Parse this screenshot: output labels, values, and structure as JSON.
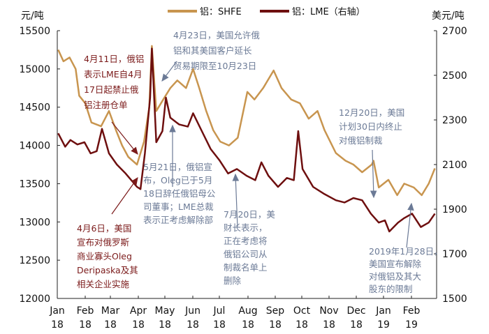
{
  "chart_data": {
    "type": "line",
    "left_unit": "元/吨",
    "right_unit": "美元/吨",
    "yleft": {
      "lim": [
        12000,
        15500
      ],
      "ticks": [
        "15500",
        "15000",
        "14500",
        "14000",
        "13500",
        "13000",
        "12500",
        "12000"
      ]
    },
    "yright": {
      "lim": [
        1500,
        2700
      ],
      "ticks": [
        "2700",
        "2500",
        "2300",
        "2100",
        "1900",
        "1700",
        "1500"
      ]
    },
    "xticks": [
      [
        "Jan",
        "18"
      ],
      [
        "Feb",
        "18"
      ],
      [
        "Mar",
        "18"
      ],
      [
        "Apr",
        "18"
      ],
      [
        "May",
        "18"
      ],
      [
        "Jun",
        "18"
      ],
      [
        "Jul",
        "18"
      ],
      [
        "Aug",
        "18"
      ],
      [
        "Sep",
        "18"
      ],
      [
        "Oct",
        "18"
      ],
      [
        "Nov",
        "18"
      ],
      [
        "Dec",
        "18"
      ],
      [
        "Jan",
        "19"
      ],
      [
        "Feb",
        "19"
      ]
    ],
    "xrange": [
      "2018-01-01",
      "2019-03-10"
    ],
    "series": [
      {
        "name": "铝：SHFE",
        "axis": "left",
        "color": "#c8954f",
        "points": [
          [
            "2018-01-02",
            15250
          ],
          [
            "2018-01-08",
            15100
          ],
          [
            "2018-01-15",
            15150
          ],
          [
            "2018-01-22",
            15000
          ],
          [
            "2018-01-26",
            14650
          ],
          [
            "2018-02-02",
            14550
          ],
          [
            "2018-02-09",
            14300
          ],
          [
            "2018-02-20",
            14250
          ],
          [
            "2018-03-01",
            14450
          ],
          [
            "2018-03-09",
            14200
          ],
          [
            "2018-03-16",
            14000
          ],
          [
            "2018-03-23",
            13850
          ],
          [
            "2018-04-02",
            13750
          ],
          [
            "2018-04-10",
            14050
          ],
          [
            "2018-04-16",
            14500
          ],
          [
            "2018-04-19",
            15300
          ],
          [
            "2018-04-24",
            14450
          ],
          [
            "2018-05-02",
            14600
          ],
          [
            "2018-05-10",
            14750
          ],
          [
            "2018-05-18",
            14850
          ],
          [
            "2018-05-28",
            14750
          ],
          [
            "2018-06-05",
            15000
          ],
          [
            "2018-06-12",
            14750
          ],
          [
            "2018-06-20",
            14450
          ],
          [
            "2018-06-28",
            14200
          ],
          [
            "2018-07-06",
            14050
          ],
          [
            "2018-07-16",
            14000
          ],
          [
            "2018-07-26",
            14100
          ],
          [
            "2018-08-06",
            14700
          ],
          [
            "2018-08-14",
            14600
          ],
          [
            "2018-08-24",
            14750
          ],
          [
            "2018-09-05",
            14980
          ],
          [
            "2018-09-14",
            14750
          ],
          [
            "2018-09-25",
            14600
          ],
          [
            "2018-10-05",
            14550
          ],
          [
            "2018-10-15",
            14350
          ],
          [
            "2018-10-25",
            14450
          ],
          [
            "2018-11-02",
            14200
          ],
          [
            "2018-11-15",
            13900
          ],
          [
            "2018-11-26",
            13800
          ],
          [
            "2018-12-05",
            13750
          ],
          [
            "2018-12-15",
            13650
          ],
          [
            "2018-12-26",
            13750
          ],
          [
            "2018-12-28",
            13800
          ],
          [
            "2019-01-03",
            13450
          ],
          [
            "2019-01-14",
            13550
          ],
          [
            "2019-01-24",
            13350
          ],
          [
            "2019-02-01",
            13500
          ],
          [
            "2019-02-12",
            13450
          ],
          [
            "2019-02-21",
            13350
          ],
          [
            "2019-03-01",
            13500
          ],
          [
            "2019-03-08",
            13700
          ]
        ]
      },
      {
        "name": "铝：LME（右轴）",
        "axis": "right",
        "color": "#6e0f0f",
        "points": [
          [
            "2018-01-02",
            2240
          ],
          [
            "2018-01-10",
            2180
          ],
          [
            "2018-01-16",
            2210
          ],
          [
            "2018-01-24",
            2190
          ],
          [
            "2018-02-01",
            2200
          ],
          [
            "2018-02-08",
            2150
          ],
          [
            "2018-02-15",
            2160
          ],
          [
            "2018-02-21",
            2260
          ],
          [
            "2018-03-01",
            2150
          ],
          [
            "2018-03-10",
            2100
          ],
          [
            "2018-03-20",
            2060
          ],
          [
            "2018-04-02",
            2000
          ],
          [
            "2018-04-06",
            1990
          ],
          [
            "2018-04-11",
            2150
          ],
          [
            "2018-04-17",
            2400
          ],
          [
            "2018-04-19",
            2620
          ],
          [
            "2018-04-24",
            2200
          ],
          [
            "2018-05-01",
            2250
          ],
          [
            "2018-05-05",
            2400
          ],
          [
            "2018-05-10",
            2310
          ],
          [
            "2018-05-20",
            2280
          ],
          [
            "2018-05-30",
            2270
          ],
          [
            "2018-06-05",
            2330
          ],
          [
            "2018-06-15",
            2250
          ],
          [
            "2018-06-25",
            2170
          ],
          [
            "2018-07-05",
            2120
          ],
          [
            "2018-07-15",
            2060
          ],
          [
            "2018-07-25",
            2080
          ],
          [
            "2018-08-05",
            2050
          ],
          [
            "2018-08-15",
            2030
          ],
          [
            "2018-08-22",
            2110
          ],
          [
            "2018-08-30",
            2050
          ],
          [
            "2018-09-10",
            2000
          ],
          [
            "2018-09-20",
            2040
          ],
          [
            "2018-09-28",
            2030
          ],
          [
            "2018-10-03",
            2250
          ],
          [
            "2018-10-08",
            2080
          ],
          [
            "2018-10-20",
            2000
          ],
          [
            "2018-11-01",
            1970
          ],
          [
            "2018-11-15",
            1940
          ],
          [
            "2018-11-25",
            1930
          ],
          [
            "2018-12-05",
            1950
          ],
          [
            "2018-12-15",
            1940
          ],
          [
            "2018-12-25",
            1880
          ],
          [
            "2019-01-03",
            1840
          ],
          [
            "2019-01-10",
            1850
          ],
          [
            "2019-01-15",
            1800
          ],
          [
            "2019-01-25",
            1840
          ],
          [
            "2019-02-01",
            1860
          ],
          [
            "2019-02-10",
            1880
          ],
          [
            "2019-02-20",
            1820
          ],
          [
            "2019-03-01",
            1840
          ],
          [
            "2019-03-08",
            1880
          ]
        ]
      }
    ],
    "legend_position": "top",
    "annotations": [
      {
        "id": "a411",
        "color": "#7b1a1a",
        "lines": [
          "4月11日，俄铝",
          "表示LME自4月",
          "17日起禁止俄",
          "铝注册仓单"
        ]
      },
      {
        "id": "a423",
        "color": "#6b7a96",
        "lines": [
          "4月23日，美国允许俄",
          "铝和其美国客户延长",
          "贸易期限至10月23日"
        ]
      },
      {
        "id": "a521",
        "color": "#6b7a96",
        "lines": [
          "5月21日，俄铝宣",
          "布，Oleg已于5月",
          "18日辞任俄铝母公",
          "司董事；LME总裁",
          "表示正考虑解除部"
        ]
      },
      {
        "id": "a720",
        "color": "#6b7a96",
        "lines": [
          "7月20日，美",
          "财长表示，",
          "正在考虑将",
          "俄铝公司从",
          "制裁名单上",
          "删除"
        ]
      },
      {
        "id": "a406",
        "color": "#7b1a1a",
        "lines": [
          "4月6日，美国",
          "宣布对俄罗斯",
          "商业寡头Oleg",
          "Deripaska及其",
          "相关企业实施"
        ]
      },
      {
        "id": "a1220",
        "color": "#6b7a96",
        "lines": [
          "12月20日，美国",
          "计划30日内终止",
          "对俄铝制裁"
        ]
      },
      {
        "id": "a0128",
        "color": "#6b7a96",
        "lines": [
          "2019年1月28日，",
          "美国宣布解除",
          "对俄铝及其大",
          "股东的限制"
        ]
      }
    ]
  }
}
